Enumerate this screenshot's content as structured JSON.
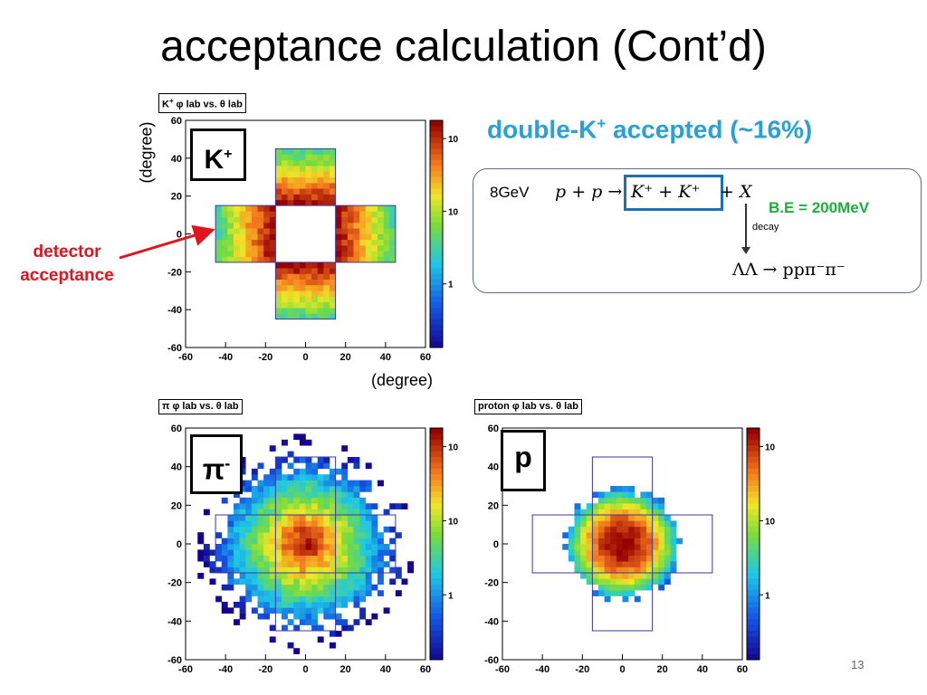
{
  "slide": {
    "title": "acceptance calculation (Cont’d)",
    "page_number": "13"
  },
  "annotations": {
    "detector_line1": "detector",
    "detector_line2": "acceptance",
    "y_unit": "(degree)",
    "x_unit": "(degree)",
    "accepted_prefix": "double-K",
    "accepted_sup": "+",
    "accepted_suffix": " accepted (~16%)"
  },
  "reaction": {
    "beam": "8GeV",
    "lhs": "p + p →",
    "kaons": "K⁺ + K⁺",
    "plus_x": "+ X",
    "binding": "B.E = 200MeV",
    "decay_label": "decay",
    "products": "ΛΛ → ppπ⁻π⁻"
  },
  "colors": {
    "accent_blue": "#2aa0d8",
    "detector_red": "#e0141e",
    "binding_green": "#1fae3c",
    "highlight_box": "#1f6fb5",
    "acceptance_outline": "#3a3aa0"
  },
  "panels": [
    {
      "id": "kplus",
      "tag": "K",
      "tag_sup": "+",
      "hist_title_particle": "K",
      "hist_title_sup": "+",
      "hist_title_rest": " φ lab vs. θ lab"
    },
    {
      "id": "piminus",
      "tag": "π",
      "tag_sup": "-",
      "hist_title_particle": "π",
      "hist_title_sup": "",
      "hist_title_rest": " φ lab vs. θ lab"
    },
    {
      "id": "proton",
      "tag": "p",
      "tag_sup": "",
      "hist_title_particle": "proton",
      "hist_title_sup": "",
      "hist_title_rest": " φ lab vs. θ lab"
    }
  ],
  "chart_data": [
    {
      "type": "heatmap",
      "title": "K+ φlab vs. θlab",
      "xlabel": "(degree)",
      "ylabel": "(degree)",
      "xlim": [
        -60,
        60
      ],
      "ylim": [
        -60,
        60
      ],
      "x_ticks": [
        -60,
        -40,
        -20,
        0,
        20,
        40,
        60
      ],
      "y_ticks": [
        -60,
        -40,
        -20,
        0,
        20,
        40,
        60
      ],
      "colorbar_ticks": [
        "10",
        "10",
        "1"
      ],
      "distribution": "cross-shaped acceptance region",
      "acceptance_regions": [
        {
          "x": [
            -45,
            -15
          ],
          "y": [
            -15,
            15
          ]
        },
        {
          "x": [
            15,
            45
          ],
          "y": [
            -15,
            15
          ]
        },
        {
          "x": [
            -15,
            15
          ],
          "y": [
            15,
            45
          ]
        },
        {
          "x": [
            -15,
            15
          ],
          "y": [
            -45,
            -15
          ]
        }
      ]
    },
    {
      "type": "heatmap",
      "title": "π φlab vs. θlab",
      "xlim": [
        -60,
        60
      ],
      "ylim": [
        -60,
        60
      ],
      "x_ticks": [
        -60,
        -40,
        -20,
        0,
        20,
        40,
        60
      ],
      "y_ticks": [
        -60,
        -40,
        -20,
        0,
        20,
        40,
        60
      ],
      "colorbar_ticks": [
        "10",
        "10",
        "1"
      ],
      "distribution": "broad distribution peaked at (0,0)",
      "acceptance_regions": [
        {
          "x": [
            -45,
            -15
          ],
          "y": [
            -15,
            15
          ]
        },
        {
          "x": [
            15,
            45
          ],
          "y": [
            -15,
            15
          ]
        },
        {
          "x": [
            -15,
            15
          ],
          "y": [
            15,
            45
          ]
        },
        {
          "x": [
            -15,
            15
          ],
          "y": [
            -45,
            -15
          ]
        }
      ]
    },
    {
      "type": "heatmap",
      "title": "proton φlab vs. θlab",
      "xlim": [
        -60,
        60
      ],
      "ylim": [
        -60,
        60
      ],
      "x_ticks": [
        -60,
        -40,
        -20,
        0,
        20,
        40,
        60
      ],
      "y_ticks": [
        -60,
        -40,
        -20,
        0,
        20,
        40,
        60
      ],
      "colorbar_ticks": [
        "10",
        "10",
        "1"
      ],
      "distribution": "compact distribution peaked at (0,0)",
      "acceptance_regions": [
        {
          "x": [
            -45,
            -15
          ],
          "y": [
            -15,
            15
          ]
        },
        {
          "x": [
            15,
            45
          ],
          "y": [
            -15,
            15
          ]
        },
        {
          "x": [
            -15,
            15
          ],
          "y": [
            15,
            45
          ]
        },
        {
          "x": [
            -15,
            15
          ],
          "y": [
            -45,
            -15
          ]
        }
      ]
    }
  ]
}
